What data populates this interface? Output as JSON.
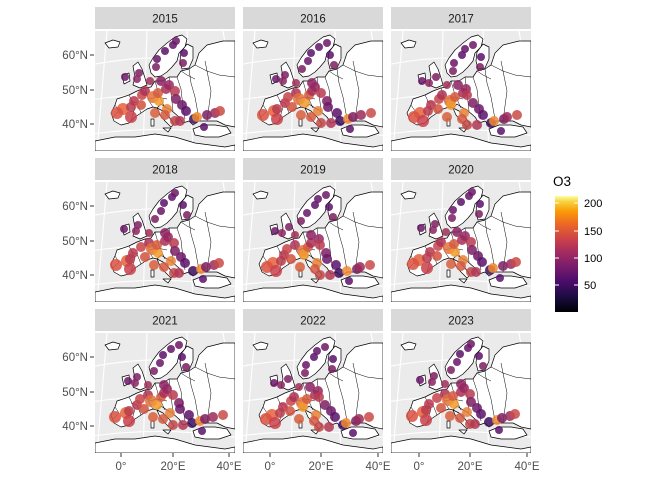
{
  "panels": [
    {
      "year": "2015"
    },
    {
      "year": "2016"
    },
    {
      "year": "2017"
    },
    {
      "year": "2018"
    },
    {
      "year": "2019"
    },
    {
      "year": "2020"
    },
    {
      "year": "2021"
    },
    {
      "year": "2022"
    },
    {
      "year": "2023"
    }
  ],
  "axes": {
    "y_ticks": [
      "60°N",
      "50°N",
      "40°N"
    ],
    "x_ticks": [
      "0°",
      "20°E",
      "40°E"
    ]
  },
  "legend": {
    "title": "O3",
    "labels": [
      "200",
      "150",
      "100",
      "50"
    ],
    "colormap": "inferno",
    "range": [
      0,
      215
    ]
  },
  "colors": {
    "panel_bg": "#ebebeb",
    "strip_bg": "#d9d9d9",
    "grid": "#ffffff",
    "border": "#000000"
  }
}
